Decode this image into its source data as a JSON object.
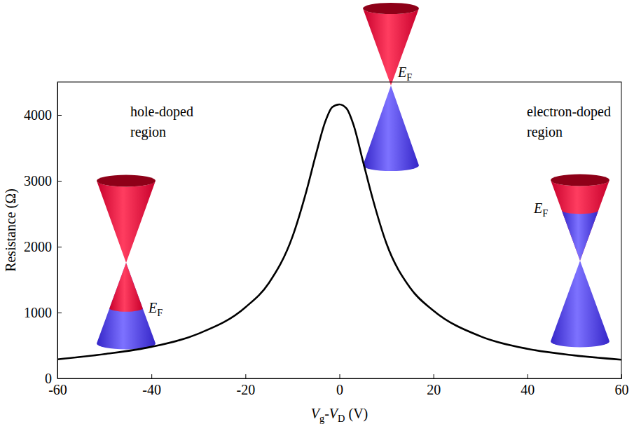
{
  "chart_data": {
    "type": "line",
    "x_label": "Vg-VD (V)",
    "y_label": "Resistance (Ω)",
    "x": [
      -60,
      -50,
      -40,
      -30,
      -20,
      -15,
      -10,
      -7,
      -5,
      -3,
      -1.5,
      0,
      1.5,
      3,
      5,
      7,
      10,
      15,
      20,
      30,
      40,
      50,
      60
    ],
    "values": [
      290,
      370,
      480,
      680,
      1080,
      1450,
      2150,
      2850,
      3400,
      3900,
      4120,
      4160,
      4100,
      3850,
      3300,
      2750,
      2050,
      1380,
      1030,
      640,
      450,
      350,
      285
    ],
    "color": "#000000",
    "xlim": [
      -60,
      60
    ],
    "ylim": [
      0,
      4500
    ],
    "xticks": [
      -60,
      -40,
      -20,
      0,
      20,
      40,
      60
    ],
    "yticks": [
      0,
      1000,
      2000,
      3000,
      4000
    ],
    "grid": false,
    "annotations": [
      "hole-doped region",
      "electron-doped region",
      "EF",
      "EF",
      "EF"
    ]
  }
}
